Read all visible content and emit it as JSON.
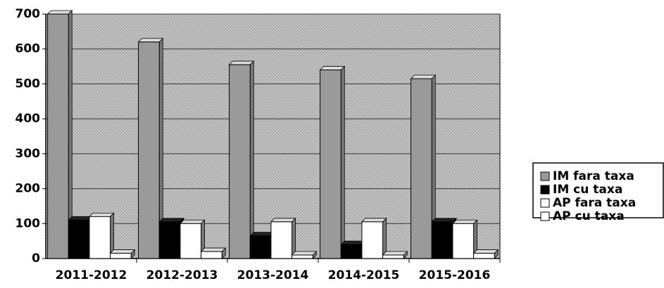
{
  "chart_data": {
    "type": "bar",
    "categories": [
      "2011-2012",
      "2012-2013",
      "2013-2014",
      "2014-2015",
      "2015-2016"
    ],
    "series": [
      {
        "name": "IM fara taxa",
        "color": "#9a9a9a",
        "values": [
          700,
          620,
          555,
          540,
          515
        ]
      },
      {
        "name": "IM cu taxa",
        "color": "#000000",
        "values": [
          110,
          105,
          65,
          40,
          105
        ]
      },
      {
        "name": "AP fara taxa",
        "color": "#ffffff",
        "values": [
          120,
          100,
          105,
          105,
          100
        ]
      },
      {
        "name": "AP cu taxa",
        "color": "#ffffff",
        "values": [
          15,
          20,
          10,
          10,
          15
        ]
      }
    ],
    "ylim": [
      0,
      700
    ],
    "yticks": [
      0,
      100,
      200,
      300,
      400,
      500,
      600,
      700
    ],
    "grid": true,
    "legend": "right"
  }
}
